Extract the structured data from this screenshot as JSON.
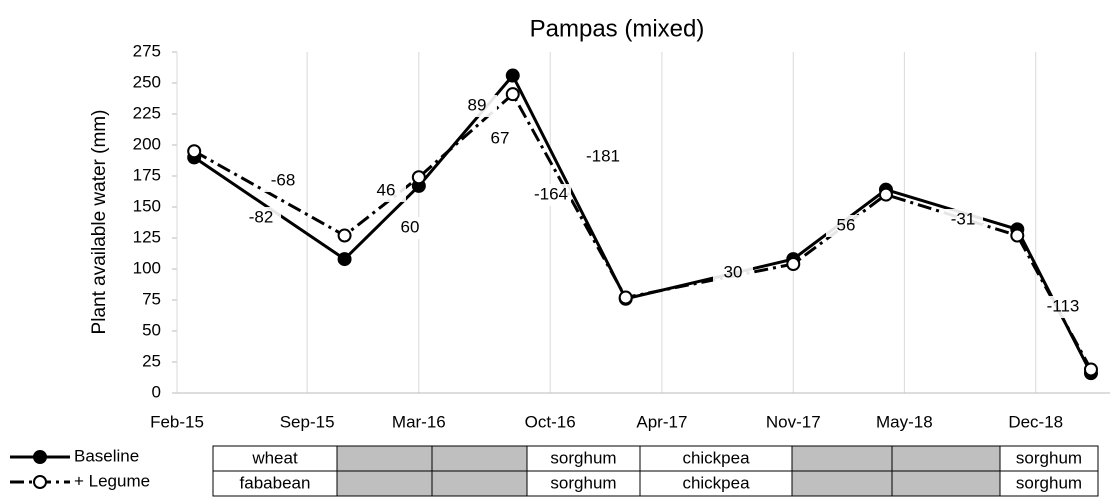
{
  "chart_data": {
    "type": "line",
    "title": "Pampas (mixed)",
    "ylabel": "Plant available water (mm)",
    "x": [
      "2015-03",
      "2015-11",
      "2016-03",
      "2016-08",
      "2017-02",
      "2017-11",
      "2018-04",
      "2018-11",
      "2019-03"
    ],
    "series": [
      {
        "name": "Baseline",
        "color": "#000000",
        "style": "solid",
        "marker": "filled",
        "values": [
          190,
          108,
          167,
          256,
          76,
          108,
          164,
          132,
          16
        ]
      },
      {
        "name": "+ Legume",
        "color": "#000000",
        "style": "dashdot",
        "marker": "open",
        "values": [
          195,
          127,
          174,
          241,
          77,
          104,
          160,
          127,
          19
        ]
      }
    ],
    "xlim": [
      "2015-02",
      "2019-04"
    ],
    "xticks": [
      {
        "value": "2015-02",
        "label": "Feb-15"
      },
      {
        "value": "2015-09",
        "label": "Sep-15"
      },
      {
        "value": "2016-03",
        "label": "Mar-16"
      },
      {
        "value": "2016-10",
        "label": "Oct-16"
      },
      {
        "value": "2017-04",
        "label": "Apr-17"
      },
      {
        "value": "2017-11",
        "label": "Nov-17"
      },
      {
        "value": "2018-05",
        "label": "May-18"
      },
      {
        "value": "2018-12",
        "label": "Dec-18"
      }
    ],
    "ylim": [
      0,
      275
    ],
    "yticks": [
      0,
      25,
      50,
      75,
      100,
      125,
      150,
      175,
      200,
      225,
      250,
      275
    ],
    "grid": "x",
    "annotations": [
      "-68",
      "-82",
      "46",
      "60",
      "89",
      "67",
      "-164",
      "-181",
      "30",
      "56",
      "-31",
      "-113"
    ]
  },
  "table": {
    "rows": [
      [
        "wheat",
        null,
        null,
        "sorghum",
        "chickpea",
        null,
        null,
        "sorghum"
      ],
      [
        "fababean",
        null,
        null,
        "sorghum",
        "chickpea",
        null,
        null,
        "sorghum"
      ]
    ]
  }
}
